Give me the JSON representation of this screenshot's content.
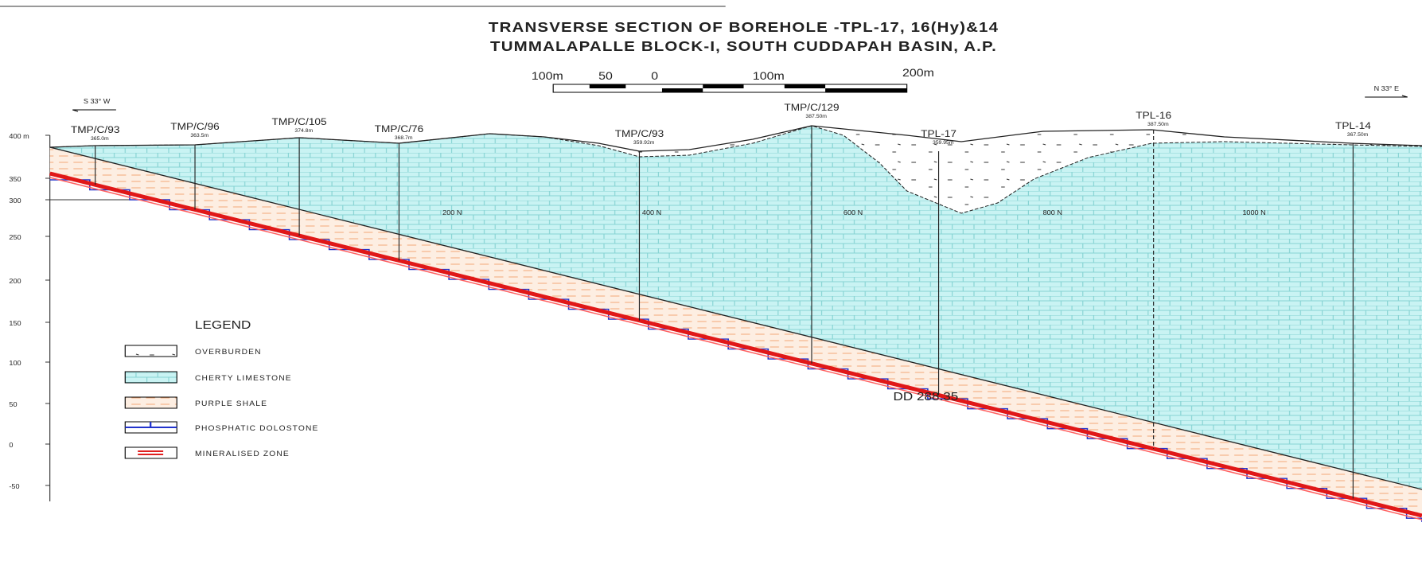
{
  "title": [
    "TRANSVERSE SECTION OF BOREHOLE -TPL-17, 16(Hy)&14",
    "TUMMALAPALLE BLOCK-I, SOUTH CUDDAPAH BASIN, A.P."
  ],
  "scale_bar": [
    "100m",
    "50",
    "0",
    "100m",
    "200m"
  ],
  "orientation": [
    "S 33° W",
    "N 33° E"
  ],
  "elevation_labels": [
    "400 m",
    "350",
    "300",
    "250",
    "200",
    "150",
    "100",
    "50",
    "0",
    "-50"
  ],
  "distance_labels": [
    "200 N",
    "400 N",
    "600 N",
    "800 N",
    "1000 N"
  ],
  "boreholes": [
    {
      "name": "TMP/C/93",
      "elevation": "365.0m"
    },
    {
      "name": "TMP/C/96",
      "elevation": "363.5m"
    },
    {
      "name": "TMP/C/105",
      "elevation": "374.8m"
    },
    {
      "name": "TMP/C/76",
      "elevation": "368.7m"
    },
    {
      "name": "TMP/C/93",
      "elevation": "359.92m"
    },
    {
      "name": "TMP/C/129",
      "elevation": "387.50m"
    },
    {
      "name": "TPL-17",
      "elevation": "359.95m"
    },
    {
      "name": "TPL-16",
      "elevation": "387.50m"
    },
    {
      "name": "TPL-14",
      "elevation": "367.50m"
    }
  ],
  "legend": {
    "title": "LEGEND",
    "items": [
      "OVERBURDEN",
      "CHERTY LIMESTONE",
      "PURPLE SHALE",
      "PHOSPHATIC DOLOSTONE",
      "MINERALISED ZONE"
    ]
  },
  "annotation": "DD 288.35"
}
